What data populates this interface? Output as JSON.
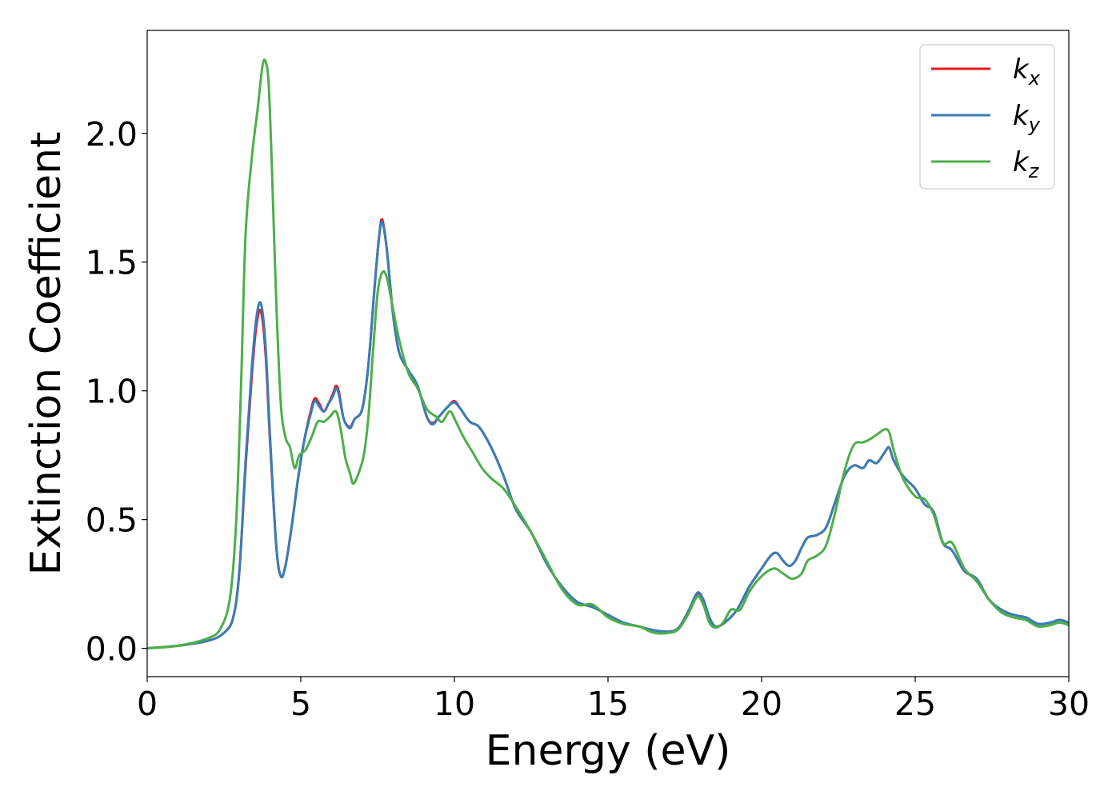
{
  "chart_data": {
    "type": "line",
    "title": "",
    "xlabel": "Energy (eV)",
    "ylabel": "Extinction Coefficient",
    "xlim": [
      0,
      30
    ],
    "ylim": [
      -0.11,
      2.4
    ],
    "x_ticks": [
      "0",
      "5",
      "10",
      "15",
      "20",
      "25",
      "30"
    ],
    "y_ticks": [
      "0.0",
      "0.5",
      "1.0",
      "1.5",
      "2.0"
    ],
    "grid": false,
    "legend_position": "top-right",
    "series": [
      {
        "name": "k",
        "subscript": "x",
        "color": "#e41a1c",
        "points": [
          [
            0,
            0
          ],
          [
            1,
            0.01
          ],
          [
            2,
            0.03
          ],
          [
            2.5,
            0.06
          ],
          [
            2.8,
            0.12
          ],
          [
            3.0,
            0.3
          ],
          [
            3.2,
            0.7
          ],
          [
            3.4,
            1.05
          ],
          [
            3.55,
            1.25
          ],
          [
            3.7,
            1.31
          ],
          [
            3.85,
            1.15
          ],
          [
            4.0,
            0.8
          ],
          [
            4.2,
            0.4
          ],
          [
            4.35,
            0.28
          ],
          [
            4.5,
            0.32
          ],
          [
            4.7,
            0.47
          ],
          [
            4.9,
            0.65
          ],
          [
            5.1,
            0.8
          ],
          [
            5.3,
            0.91
          ],
          [
            5.45,
            0.97
          ],
          [
            5.6,
            0.95
          ],
          [
            5.75,
            0.92
          ],
          [
            5.9,
            0.95
          ],
          [
            6.05,
            0.99
          ],
          [
            6.15,
            1.02
          ],
          [
            6.25,
            0.99
          ],
          [
            6.4,
            0.89
          ],
          [
            6.6,
            0.86
          ],
          [
            6.75,
            0.89
          ],
          [
            7.0,
            0.93
          ],
          [
            7.2,
            1.1
          ],
          [
            7.4,
            1.4
          ],
          [
            7.55,
            1.6
          ],
          [
            7.65,
            1.665
          ],
          [
            7.8,
            1.55
          ],
          [
            8.0,
            1.3
          ],
          [
            8.2,
            1.15
          ],
          [
            8.5,
            1.08
          ],
          [
            8.8,
            1.02
          ],
          [
            9.1,
            0.9
          ],
          [
            9.3,
            0.875
          ],
          [
            9.5,
            0.9
          ],
          [
            9.8,
            0.94
          ],
          [
            10.0,
            0.96
          ],
          [
            10.2,
            0.93
          ],
          [
            10.5,
            0.88
          ],
          [
            10.8,
            0.86
          ],
          [
            11.2,
            0.78
          ],
          [
            11.6,
            0.67
          ],
          [
            12.0,
            0.54
          ],
          [
            12.5,
            0.45
          ],
          [
            13.0,
            0.33
          ],
          [
            13.5,
            0.24
          ],
          [
            14.0,
            0.18
          ],
          [
            14.5,
            0.16
          ],
          [
            15.0,
            0.13
          ],
          [
            15.5,
            0.1
          ],
          [
            16.0,
            0.085
          ],
          [
            16.5,
            0.07
          ],
          [
            17.0,
            0.065
          ],
          [
            17.3,
            0.08
          ],
          [
            17.6,
            0.14
          ],
          [
            17.9,
            0.21
          ],
          [
            18.1,
            0.19
          ],
          [
            18.3,
            0.12
          ],
          [
            18.5,
            0.085
          ],
          [
            18.8,
            0.1
          ],
          [
            19.2,
            0.15
          ],
          [
            19.6,
            0.24
          ],
          [
            20.0,
            0.31
          ],
          [
            20.3,
            0.36
          ],
          [
            20.5,
            0.37
          ],
          [
            20.7,
            0.34
          ],
          [
            20.9,
            0.32
          ],
          [
            21.1,
            0.34
          ],
          [
            21.3,
            0.39
          ],
          [
            21.5,
            0.43
          ],
          [
            21.8,
            0.44
          ],
          [
            22.1,
            0.47
          ],
          [
            22.4,
            0.57
          ],
          [
            22.7,
            0.67
          ],
          [
            23.0,
            0.71
          ],
          [
            23.3,
            0.7
          ],
          [
            23.5,
            0.73
          ],
          [
            23.75,
            0.72
          ],
          [
            24.0,
            0.76
          ],
          [
            24.15,
            0.78
          ],
          [
            24.3,
            0.73
          ],
          [
            24.6,
            0.67
          ],
          [
            25.0,
            0.62
          ],
          [
            25.3,
            0.56
          ],
          [
            25.6,
            0.53
          ],
          [
            25.9,
            0.41
          ],
          [
            26.2,
            0.38
          ],
          [
            26.6,
            0.3
          ],
          [
            27.0,
            0.27
          ],
          [
            27.4,
            0.19
          ],
          [
            27.8,
            0.15
          ],
          [
            28.2,
            0.13
          ],
          [
            28.6,
            0.12
          ],
          [
            29.0,
            0.095
          ],
          [
            29.4,
            0.1
          ],
          [
            29.7,
            0.11
          ],
          [
            30,
            0.1
          ]
        ]
      },
      {
        "name": "k",
        "subscript": "y",
        "color": "#377eb8",
        "points": [
          [
            0,
            0
          ],
          [
            1,
            0.01
          ],
          [
            2,
            0.03
          ],
          [
            2.5,
            0.06
          ],
          [
            2.8,
            0.12
          ],
          [
            3.0,
            0.3
          ],
          [
            3.2,
            0.72
          ],
          [
            3.4,
            1.08
          ],
          [
            3.55,
            1.28
          ],
          [
            3.7,
            1.34
          ],
          [
            3.85,
            1.18
          ],
          [
            4.0,
            0.82
          ],
          [
            4.2,
            0.4
          ],
          [
            4.35,
            0.28
          ],
          [
            4.5,
            0.32
          ],
          [
            4.7,
            0.47
          ],
          [
            4.9,
            0.65
          ],
          [
            5.1,
            0.8
          ],
          [
            5.3,
            0.9
          ],
          [
            5.45,
            0.96
          ],
          [
            5.6,
            0.94
          ],
          [
            5.75,
            0.92
          ],
          [
            5.9,
            0.95
          ],
          [
            6.05,
            0.98
          ],
          [
            6.15,
            1.01
          ],
          [
            6.25,
            0.98
          ],
          [
            6.4,
            0.89
          ],
          [
            6.6,
            0.855
          ],
          [
            6.75,
            0.89
          ],
          [
            7.0,
            0.93
          ],
          [
            7.2,
            1.1
          ],
          [
            7.4,
            1.4
          ],
          [
            7.55,
            1.6
          ],
          [
            7.65,
            1.655
          ],
          [
            7.8,
            1.55
          ],
          [
            8.0,
            1.3
          ],
          [
            8.2,
            1.15
          ],
          [
            8.5,
            1.08
          ],
          [
            8.8,
            1.02
          ],
          [
            9.1,
            0.9
          ],
          [
            9.3,
            0.87
          ],
          [
            9.5,
            0.9
          ],
          [
            9.8,
            0.94
          ],
          [
            10.0,
            0.955
          ],
          [
            10.2,
            0.93
          ],
          [
            10.5,
            0.88
          ],
          [
            10.8,
            0.86
          ],
          [
            11.2,
            0.78
          ],
          [
            11.6,
            0.67
          ],
          [
            12.0,
            0.54
          ],
          [
            12.5,
            0.45
          ],
          [
            13.0,
            0.33
          ],
          [
            13.5,
            0.24
          ],
          [
            14.0,
            0.18
          ],
          [
            14.5,
            0.16
          ],
          [
            15.0,
            0.13
          ],
          [
            15.5,
            0.1
          ],
          [
            16.0,
            0.085
          ],
          [
            16.5,
            0.07
          ],
          [
            17.0,
            0.065
          ],
          [
            17.3,
            0.08
          ],
          [
            17.6,
            0.14
          ],
          [
            17.9,
            0.215
          ],
          [
            18.1,
            0.19
          ],
          [
            18.3,
            0.12
          ],
          [
            18.5,
            0.085
          ],
          [
            18.8,
            0.1
          ],
          [
            19.2,
            0.15
          ],
          [
            19.6,
            0.24
          ],
          [
            20.0,
            0.31
          ],
          [
            20.3,
            0.36
          ],
          [
            20.5,
            0.37
          ],
          [
            20.7,
            0.34
          ],
          [
            20.9,
            0.32
          ],
          [
            21.1,
            0.34
          ],
          [
            21.3,
            0.39
          ],
          [
            21.5,
            0.43
          ],
          [
            21.8,
            0.44
          ],
          [
            22.1,
            0.47
          ],
          [
            22.4,
            0.57
          ],
          [
            22.7,
            0.67
          ],
          [
            23.0,
            0.71
          ],
          [
            23.3,
            0.7
          ],
          [
            23.5,
            0.73
          ],
          [
            23.75,
            0.72
          ],
          [
            24.0,
            0.76
          ],
          [
            24.15,
            0.78
          ],
          [
            24.3,
            0.73
          ],
          [
            24.6,
            0.67
          ],
          [
            25.0,
            0.62
          ],
          [
            25.3,
            0.56
          ],
          [
            25.6,
            0.53
          ],
          [
            25.9,
            0.41
          ],
          [
            26.2,
            0.38
          ],
          [
            26.6,
            0.3
          ],
          [
            27.0,
            0.27
          ],
          [
            27.4,
            0.19
          ],
          [
            27.8,
            0.15
          ],
          [
            28.2,
            0.13
          ],
          [
            28.6,
            0.12
          ],
          [
            29.0,
            0.095
          ],
          [
            29.4,
            0.1
          ],
          [
            29.7,
            0.11
          ],
          [
            30,
            0.1
          ]
        ]
      },
      {
        "name": "k",
        "subscript": "z",
        "color": "#4daf4a",
        "points": [
          [
            0,
            0
          ],
          [
            1,
            0.01
          ],
          [
            2,
            0.04
          ],
          [
            2.4,
            0.08
          ],
          [
            2.7,
            0.2
          ],
          [
            2.9,
            0.5
          ],
          [
            3.05,
            1.0
          ],
          [
            3.2,
            1.6
          ],
          [
            3.4,
            1.9
          ],
          [
            3.6,
            2.1
          ],
          [
            3.75,
            2.26
          ],
          [
            3.85,
            2.28
          ],
          [
            3.95,
            2.2
          ],
          [
            4.05,
            1.9
          ],
          [
            4.2,
            1.35
          ],
          [
            4.35,
            0.95
          ],
          [
            4.5,
            0.82
          ],
          [
            4.65,
            0.78
          ],
          [
            4.8,
            0.7
          ],
          [
            4.95,
            0.75
          ],
          [
            5.15,
            0.77
          ],
          [
            5.35,
            0.82
          ],
          [
            5.55,
            0.88
          ],
          [
            5.75,
            0.88
          ],
          [
            5.95,
            0.9
          ],
          [
            6.15,
            0.92
          ],
          [
            6.3,
            0.85
          ],
          [
            6.45,
            0.74
          ],
          [
            6.6,
            0.68
          ],
          [
            6.7,
            0.64
          ],
          [
            6.85,
            0.67
          ],
          [
            7.05,
            0.75
          ],
          [
            7.2,
            0.9
          ],
          [
            7.35,
            1.15
          ],
          [
            7.5,
            1.38
          ],
          [
            7.65,
            1.46
          ],
          [
            7.8,
            1.44
          ],
          [
            8.0,
            1.32
          ],
          [
            8.2,
            1.2
          ],
          [
            8.5,
            1.07
          ],
          [
            8.8,
            1.01
          ],
          [
            9.1,
            0.93
          ],
          [
            9.4,
            0.9
          ],
          [
            9.6,
            0.88
          ],
          [
            9.85,
            0.92
          ],
          [
            10.05,
            0.88
          ],
          [
            10.3,
            0.82
          ],
          [
            10.6,
            0.76
          ],
          [
            10.9,
            0.7
          ],
          [
            11.2,
            0.66
          ],
          [
            11.6,
            0.62
          ],
          [
            12.0,
            0.55
          ],
          [
            12.5,
            0.45
          ],
          [
            13.0,
            0.34
          ],
          [
            13.5,
            0.23
          ],
          [
            14.0,
            0.17
          ],
          [
            14.5,
            0.17
          ],
          [
            15.0,
            0.12
          ],
          [
            15.5,
            0.095
          ],
          [
            16.0,
            0.085
          ],
          [
            16.5,
            0.06
          ],
          [
            17.0,
            0.06
          ],
          [
            17.3,
            0.075
          ],
          [
            17.6,
            0.13
          ],
          [
            17.9,
            0.2
          ],
          [
            18.1,
            0.17
          ],
          [
            18.3,
            0.1
          ],
          [
            18.5,
            0.08
          ],
          [
            18.75,
            0.1
          ],
          [
            19.0,
            0.15
          ],
          [
            19.3,
            0.15
          ],
          [
            19.6,
            0.22
          ],
          [
            20.0,
            0.28
          ],
          [
            20.4,
            0.31
          ],
          [
            20.7,
            0.29
          ],
          [
            21.0,
            0.27
          ],
          [
            21.3,
            0.29
          ],
          [
            21.5,
            0.34
          ],
          [
            21.8,
            0.36
          ],
          [
            22.1,
            0.4
          ],
          [
            22.4,
            0.53
          ],
          [
            22.7,
            0.69
          ],
          [
            23.0,
            0.79
          ],
          [
            23.3,
            0.8
          ],
          [
            23.5,
            0.81
          ],
          [
            23.75,
            0.83
          ],
          [
            24.0,
            0.85
          ],
          [
            24.15,
            0.84
          ],
          [
            24.3,
            0.77
          ],
          [
            24.6,
            0.66
          ],
          [
            25.0,
            0.59
          ],
          [
            25.3,
            0.58
          ],
          [
            25.6,
            0.52
          ],
          [
            25.9,
            0.41
          ],
          [
            26.2,
            0.41
          ],
          [
            26.6,
            0.31
          ],
          [
            27.0,
            0.26
          ],
          [
            27.4,
            0.19
          ],
          [
            27.8,
            0.14
          ],
          [
            28.2,
            0.12
          ],
          [
            28.6,
            0.11
          ],
          [
            29.0,
            0.085
          ],
          [
            29.4,
            0.09
          ],
          [
            29.7,
            0.1
          ],
          [
            30,
            0.09
          ]
        ]
      }
    ]
  }
}
